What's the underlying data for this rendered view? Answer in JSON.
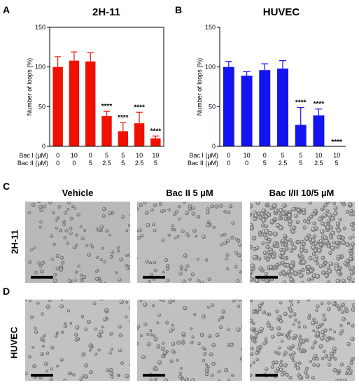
{
  "panels": {
    "a_letter": "A",
    "b_letter": "B",
    "c_letter": "C",
    "d_letter": "D"
  },
  "chart_data": [
    {
      "type": "bar",
      "title": "2H-11",
      "ylabel": "Number of loops (%)",
      "ylim": [
        0,
        150
      ],
      "yticks": [
        0,
        50,
        100,
        150
      ],
      "bar_color": "#ee1100",
      "categories_rows": [
        {
          "label": "Bac I (µM)",
          "values": [
            "0",
            "10",
            "0",
            "5",
            "5",
            "10",
            "10"
          ]
        },
        {
          "label": "Bac II (µM)",
          "values": [
            "0",
            "0",
            "5",
            "2.5",
            "5",
            "2.5",
            "5"
          ]
        }
      ],
      "values": [
        100,
        108,
        107,
        38,
        19,
        29,
        10
      ],
      "errors": [
        13,
        11,
        11,
        6,
        11,
        14,
        3
      ],
      "significance": [
        "",
        "",
        "",
        "****",
        "****",
        "****",
        "****"
      ]
    },
    {
      "type": "bar",
      "title": "HUVEC",
      "ylabel": "Number of loops (%)",
      "ylim": [
        0,
        150
      ],
      "yticks": [
        0,
        50,
        100,
        150
      ],
      "bar_color": "#1414f0",
      "categories_rows": [
        {
          "label": "Bac I (µM)",
          "values": [
            "0",
            "10",
            "0",
            "5",
            "5",
            "10",
            "10"
          ]
        },
        {
          "label": "Bac II (µM)",
          "values": [
            "0",
            "0",
            "5",
            "2.5",
            "5",
            "2.5",
            "5"
          ]
        }
      ],
      "values": [
        100,
        89,
        96,
        98,
        27,
        39,
        0
      ],
      "errors": [
        7,
        5,
        8,
        10,
        22,
        8,
        0
      ],
      "significance": [
        "",
        "",
        "",
        "",
        "****",
        "****",
        "****"
      ]
    }
  ],
  "micrographs": {
    "col_titles": [
      "Vehicle",
      "Bac II 5 µM",
      "Bac I/II 10/5 µM"
    ],
    "row_labels": [
      "2H-11",
      "HUVEC"
    ]
  }
}
